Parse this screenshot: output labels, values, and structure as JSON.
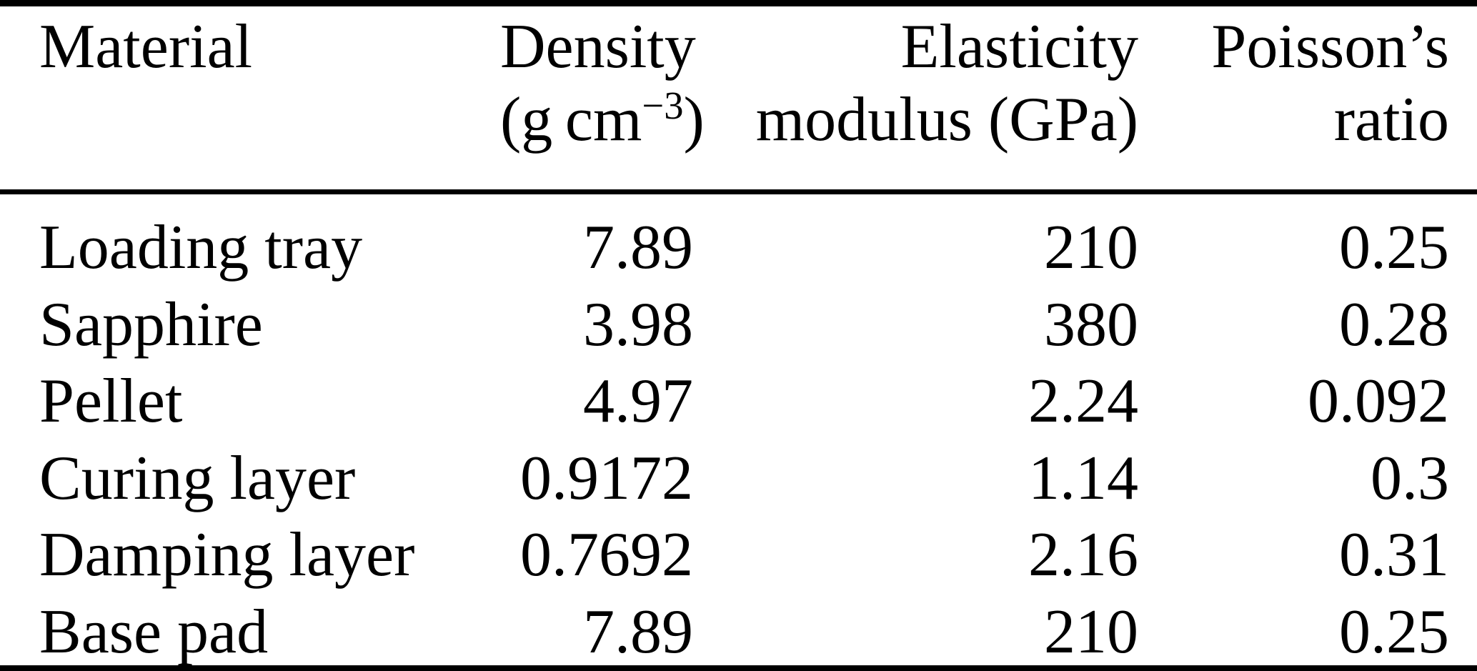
{
  "page": {
    "background": "#ffffff",
    "text_color": "#000000",
    "rule_color": "#000000"
  },
  "table": {
    "header": {
      "material": "Material",
      "density_line1": "Density",
      "density_unit_prefix": "(g cm",
      "density_unit_sup": "−3",
      "density_unit_suffix": ")",
      "elasticity_line1": "Elasticity",
      "elasticity_line2": "modulus (GPa)",
      "poisson_line1": "Poisson’s",
      "poisson_line2": "ratio"
    },
    "columns": [
      "Material",
      "Density (g cm−3)",
      "Elasticity modulus (GPa)",
      "Poisson’s ratio"
    ],
    "rows": [
      {
        "material": "Loading tray",
        "density": "7.89",
        "elasticity": "210",
        "poisson": "0.25"
      },
      {
        "material": "Sapphire",
        "density": "3.98",
        "elasticity": "380",
        "poisson": "0.28"
      },
      {
        "material": "Pellet",
        "density": "4.97",
        "elasticity": "2.24",
        "poisson": "0.092"
      },
      {
        "material": "Curing layer",
        "density": "0.9172",
        "elasticity": "1.14",
        "poisson": "0.3"
      },
      {
        "material": "Damping layer",
        "density": "0.7692",
        "elasticity": "2.16",
        "poisson": "0.31"
      },
      {
        "material": "Base pad",
        "density": "7.89",
        "elasticity": "210",
        "poisson": "0.25"
      }
    ]
  }
}
